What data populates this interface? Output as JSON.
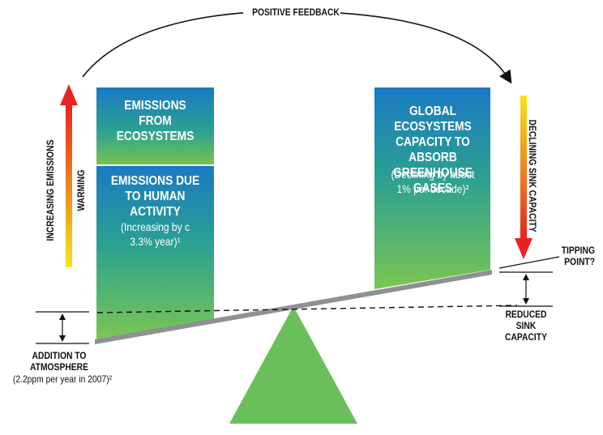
{
  "labels": {
    "positive_feedback": "POSITIVE FEEDBACK",
    "emissions_ecosystems": "EMISSIONS FROM ECOSYSTEMS",
    "emissions_human": "EMISSIONS DUE TO HUMAN ACTIVITY",
    "human_rate": "(Increasing by c 3.3% year)¹",
    "capacity_title": "GLOBAL ECOSYSTEMS CAPACITY TO ABSORB GREENHOUSE GASES",
    "capacity_rate": "(Declining by about 1% per decade)²",
    "increasing_emissions": "INCREASING EMISSIONS",
    "warming": "WARMING",
    "declining_sink": "DECLINING SINK CAPACITY",
    "tipping_point": "TIPPING POINT?",
    "reduced_sink": "REDUCED SINK CAPACITY",
    "addition": "ADDITION TO ATMOSPHERE",
    "addition_rate": "(2.2ppm per year in 2007)²"
  },
  "colors": {
    "box_top": "#1a7ac4",
    "box_mid": "#2aa091",
    "box_bottom": "#7cc653",
    "fulcrum": "#6bbf5a",
    "arrow_top": "#e8231f",
    "arrow_bottom": "#f5e61a"
  }
}
